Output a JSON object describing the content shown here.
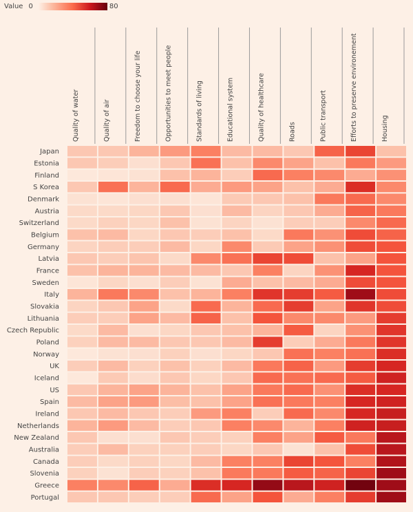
{
  "chart_data": {
    "type": "heatmap",
    "legend": {
      "title": "Value",
      "min": 0,
      "max": 80,
      "min_label": "0",
      "max_label": "80",
      "placement": "top-left"
    },
    "columns": [
      "Quality of water",
      "Quality of air",
      "Freedom to choose your life",
      "Opportunities to meet people",
      "Standards of living",
      "Educational system",
      "Quality of healthcare",
      "Roads",
      "Public transport",
      "Efforts to preserve environement",
      "Housing"
    ],
    "rows": [
      "Japan",
      "Estonia",
      "Finland",
      "S Korea",
      "Denmark",
      "Austria",
      "Switzerland",
      "Belgium",
      "Germany",
      "Latvia",
      "France",
      "Sweden",
      "Italy",
      "Slovakia",
      "Lithuania",
      "Czech Republic",
      "Poland",
      "Norway",
      "UK",
      "Iceland",
      "US",
      "Spain",
      "Ireland",
      "Netherlands",
      "New Zealand",
      "Australia",
      "Canada",
      "Slovenia",
      "Greece",
      "Portugal"
    ],
    "values": [
      [
        14,
        14,
        20,
        26,
        32,
        18,
        18,
        14,
        40,
        48,
        16
      ],
      [
        14,
        12,
        6,
        14,
        36,
        16,
        30,
        24,
        16,
        34,
        26
      ],
      [
        3,
        4,
        5,
        16,
        20,
        12,
        38,
        32,
        30,
        22,
        28
      ],
      [
        14,
        36,
        20,
        38,
        22,
        26,
        24,
        16,
        22,
        54,
        30
      ],
      [
        5,
        4,
        6,
        6,
        4,
        13,
        14,
        16,
        34,
        38,
        30
      ],
      [
        8,
        8,
        9,
        14,
        6,
        18,
        10,
        14,
        22,
        40,
        34
      ],
      [
        8,
        11,
        9,
        16,
        5,
        10,
        5,
        12,
        12,
        30,
        38
      ],
      [
        16,
        18,
        9,
        14,
        12,
        16,
        8,
        34,
        28,
        46,
        40
      ],
      [
        10,
        12,
        12,
        18,
        9,
        30,
        13,
        24,
        28,
        46,
        44
      ],
      [
        14,
        12,
        15,
        8,
        30,
        36,
        48,
        46,
        16,
        24,
        44
      ],
      [
        16,
        20,
        20,
        18,
        18,
        14,
        32,
        10,
        28,
        56,
        44
      ],
      [
        4,
        9,
        6,
        12,
        5,
        22,
        16,
        18,
        22,
        46,
        44
      ],
      [
        20,
        34,
        30,
        16,
        20,
        32,
        52,
        50,
        42,
        70,
        46
      ],
      [
        10,
        14,
        24,
        8,
        38,
        20,
        38,
        50,
        24,
        52,
        46
      ],
      [
        12,
        12,
        24,
        18,
        40,
        16,
        44,
        30,
        30,
        26,
        50
      ],
      [
        8,
        18,
        6,
        9,
        14,
        16,
        20,
        42,
        10,
        28,
        52
      ],
      [
        11,
        18,
        18,
        14,
        14,
        18,
        50,
        12,
        22,
        34,
        52
      ],
      [
        3,
        5,
        6,
        11,
        6,
        9,
        14,
        36,
        32,
        36,
        54
      ],
      [
        12,
        18,
        11,
        16,
        11,
        18,
        34,
        40,
        26,
        50,
        56
      ],
      [
        3,
        13,
        7,
        14,
        9,
        14,
        38,
        36,
        38,
        42,
        58
      ],
      [
        14,
        20,
        24,
        20,
        16,
        24,
        34,
        38,
        28,
        54,
        56
      ],
      [
        18,
        24,
        26,
        17,
        16,
        24,
        36,
        34,
        32,
        56,
        58
      ],
      [
        14,
        18,
        14,
        12,
        26,
        32,
        12,
        38,
        30,
        56,
        60
      ],
      [
        20,
        26,
        18,
        12,
        14,
        32,
        30,
        20,
        32,
        58,
        60
      ],
      [
        14,
        6,
        6,
        14,
        12,
        11,
        32,
        24,
        42,
        34,
        64
      ],
      [
        12,
        18,
        11,
        11,
        12,
        9,
        14,
        5,
        16,
        46,
        64
      ],
      [
        12,
        8,
        11,
        9,
        18,
        32,
        32,
        48,
        44,
        32,
        66
      ],
      [
        11,
        5,
        12,
        11,
        16,
        34,
        34,
        42,
        40,
        48,
        70
      ],
      [
        32,
        30,
        40,
        22,
        54,
        56,
        72,
        64,
        58,
        78,
        70
      ],
      [
        14,
        14,
        12,
        12,
        38,
        24,
        44,
        22,
        32,
        50,
        70
      ]
    ]
  }
}
